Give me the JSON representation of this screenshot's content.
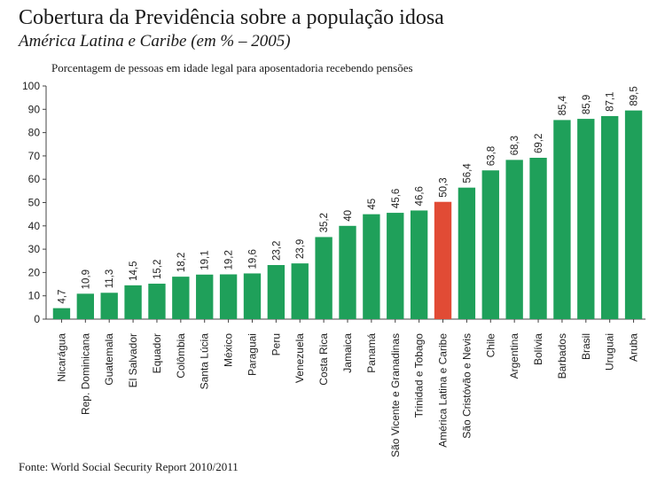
{
  "header": {
    "title": "Cobertura da Previdência sobre a população idosa",
    "subtitle": "América Latina e Caribe (em % – 2005)"
  },
  "footer": {
    "source": "Fonte: World Social Security Report 2010/2011"
  },
  "colors": {
    "bar": "#1fa05a",
    "highlight": "#e14b35",
    "axis": "#444444",
    "grid": "#dddddd"
  },
  "chart_data": {
    "type": "bar",
    "ylabel": "Porcentagem de pessoas em idade legal para aposentadoria recebendo pensões",
    "xlabel": "",
    "ylim": [
      0,
      100
    ],
    "yticks": [
      0,
      10,
      20,
      30,
      40,
      50,
      60,
      70,
      80,
      90,
      100
    ],
    "grid": false,
    "categories": [
      "Nicarágua",
      "Rep. Dominicana",
      "Guatemala",
      "El Salvador",
      "Equador",
      "Colômbia",
      "Santa Lúcia",
      "México",
      "Paraguai",
      "Peru",
      "Venezuela",
      "Costa Rica",
      "Jamaica",
      "Panamá",
      "São Vicente e Granadinas",
      "Trinidad e Tobago",
      "América Latina e Caribe",
      "São Cristóvão e Nevis",
      "Chile",
      "Argentina",
      "Bolívia",
      "Barbados",
      "Brasil",
      "Uruguai",
      "Aruba"
    ],
    "values": [
      4.7,
      10.9,
      11.3,
      14.5,
      15.2,
      18.2,
      19.1,
      19.2,
      19.6,
      23.2,
      23.9,
      35.2,
      40,
      45,
      45.6,
      46.6,
      50.3,
      56.4,
      63.8,
      68.3,
      69.2,
      85.4,
      85.9,
      87.1,
      89.5
    ],
    "value_labels": [
      "4,7",
      "10,9",
      "11,3",
      "14,5",
      "15,2",
      "18,2",
      "19,1",
      "19,2",
      "19,6",
      "23,2",
      "23,9",
      "35,2",
      "40",
      "45",
      "45,6",
      "46,6",
      "50,3",
      "56,4",
      "63,8",
      "68,3",
      "69,2",
      "85,4",
      "85,9",
      "87,1",
      "89,5"
    ],
    "highlight_category": "América Latina e Caribe"
  }
}
